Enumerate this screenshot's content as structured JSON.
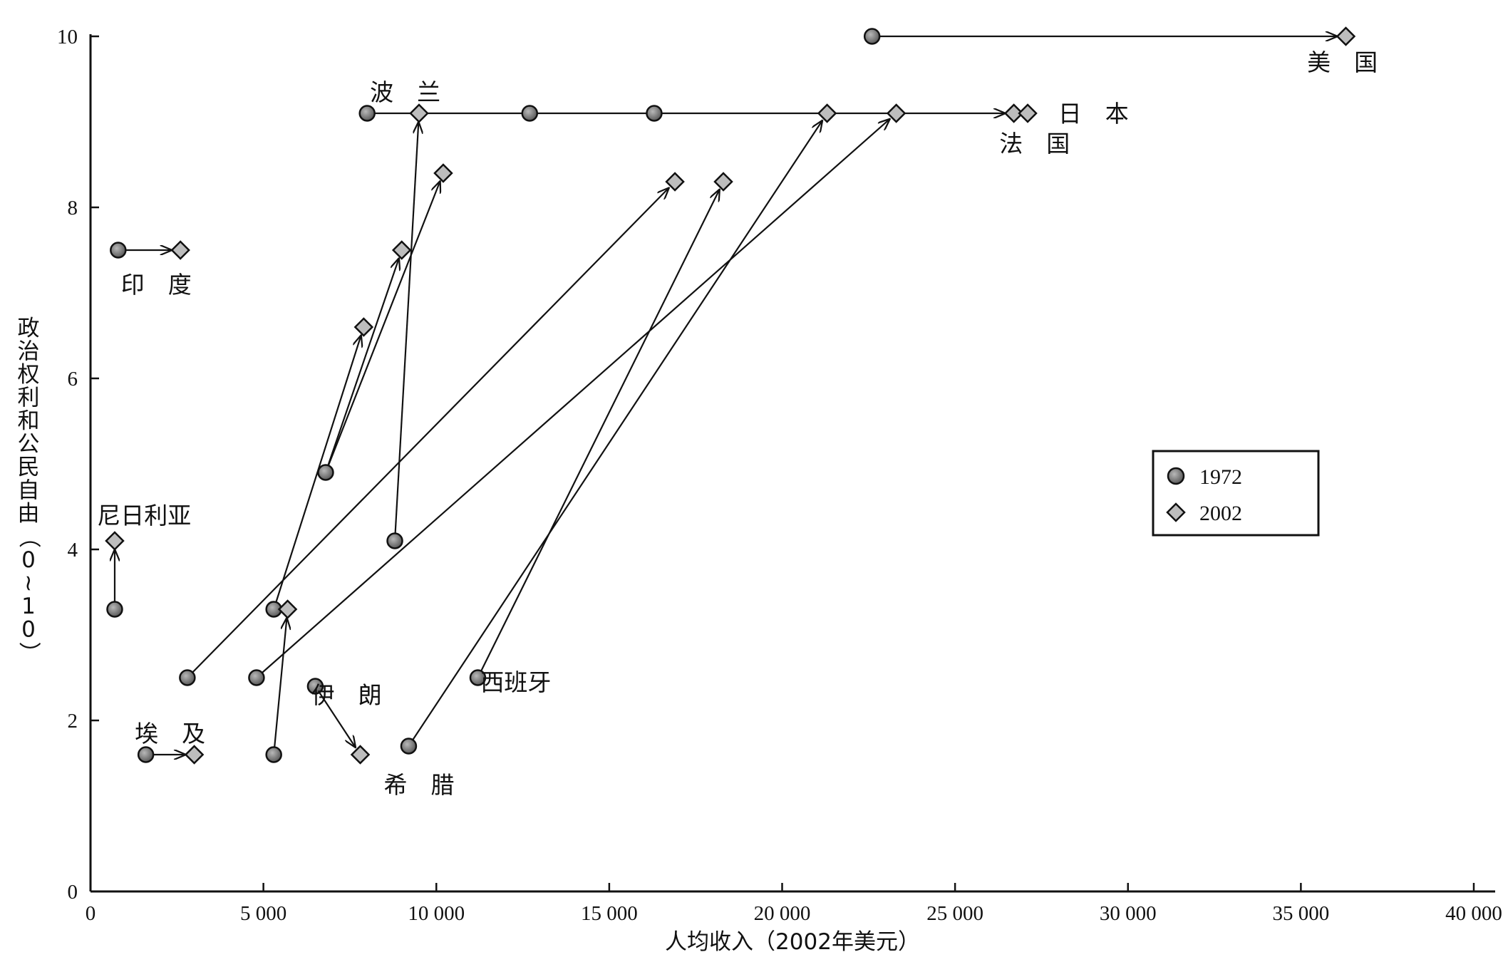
{
  "chart_data": {
    "type": "scatter",
    "xlabel": "人均收入（2002年美元）",
    "ylabel": "政治权利和公民自由（0~10）",
    "xlim": [
      0,
      40000
    ],
    "ylim": [
      0,
      10
    ],
    "x_ticks": [
      0,
      5000,
      10000,
      15000,
      20000,
      25000,
      30000,
      35000,
      40000
    ],
    "x_tick_labels": [
      "0",
      "5 000",
      "10 000",
      "15 000",
      "20 000",
      "25 000",
      "30 000",
      "35 000",
      "40 000"
    ],
    "y_ticks": [
      0,
      2,
      4,
      6,
      8,
      10
    ],
    "y_tick_labels": [
      "0",
      "2",
      "4",
      "6",
      "8",
      "10"
    ],
    "legend": {
      "position": "right",
      "entries": [
        {
          "marker": "circle",
          "label": "1972"
        },
        {
          "marker": "diamond",
          "label": "2002"
        }
      ]
    },
    "connections": [
      {
        "from": [
          800,
          7.5
        ],
        "to": [
          2600,
          7.5
        ]
      },
      {
        "from": [
          700,
          3.3
        ],
        "to": [
          700,
          4.1
        ]
      },
      {
        "from": [
          1600,
          1.6
        ],
        "to": [
          3000,
          1.6
        ]
      },
      {
        "from": [
          6500,
          2.4
        ],
        "to": [
          7800,
          1.6
        ]
      },
      {
        "from": [
          2800,
          2.5
        ],
        "to": [
          16900,
          8.3
        ]
      },
      {
        "from": [
          4800,
          2.5
        ],
        "to": [
          23300,
          9.1
        ]
      },
      {
        "from": [
          5300,
          1.6
        ],
        "to": [
          5700,
          3.3
        ]
      },
      {
        "from": [
          5300,
          3.3
        ],
        "to": [
          7900,
          6.6
        ]
      },
      {
        "from": [
          6800,
          4.9
        ],
        "to": [
          9000,
          7.5
        ]
      },
      {
        "from": [
          6800,
          4.9
        ],
        "to": [
          10200,
          8.4
        ]
      },
      {
        "from": [
          8800,
          4.1
        ],
        "to": [
          9500,
          9.1
        ]
      },
      {
        "from": [
          9200,
          1.7
        ],
        "to": [
          21300,
          9.1
        ]
      },
      {
        "from": [
          11200,
          2.5
        ],
        "to": [
          18300,
          8.3
        ]
      },
      {
        "from": [
          8000,
          9.1
        ],
        "to": [
          26700,
          9.1
        ]
      },
      {
        "from": [
          22600,
          10.0
        ],
        "to": [
          36300,
          10.0
        ]
      }
    ],
    "points_1972": [
      [
        800,
        7.5
      ],
      [
        700,
        3.3
      ],
      [
        1600,
        1.6
      ],
      [
        6500,
        2.4
      ],
      [
        2800,
        2.5
      ],
      [
        4800,
        2.5
      ],
      [
        5300,
        1.6
      ],
      [
        5300,
        3.3
      ],
      [
        6800,
        4.9
      ],
      [
        8800,
        4.1
      ],
      [
        9200,
        1.7
      ],
      [
        11200,
        2.5
      ],
      [
        8000,
        9.1
      ],
      [
        12700,
        9.1
      ],
      [
        16300,
        9.1
      ],
      [
        22600,
        10.0
      ]
    ],
    "points_2002": [
      [
        2600,
        7.5
      ],
      [
        700,
        4.1
      ],
      [
        3000,
        1.6
      ],
      [
        7800,
        1.6
      ],
      [
        5700,
        3.3
      ],
      [
        7900,
        6.6
      ],
      [
        9000,
        7.5
      ],
      [
        10200,
        8.4
      ],
      [
        9500,
        9.1
      ],
      [
        16900,
        8.3
      ],
      [
        18300,
        8.3
      ],
      [
        21300,
        9.1
      ],
      [
        23300,
        9.1
      ],
      [
        26700,
        9.1
      ],
      [
        27100,
        9.1
      ],
      [
        36300,
        10.0
      ]
    ],
    "annotations": [
      {
        "text": "美　国",
        "x": 36200,
        "y": 9.7
      },
      {
        "text": "波　兰",
        "x": 9100,
        "y": 9.35
      },
      {
        "text": "日　本",
        "x": 29000,
        "y": 9.1
      },
      {
        "text": "法　国",
        "x": 27300,
        "y": 8.75
      },
      {
        "text": "印　度",
        "x": 1900,
        "y": 7.1
      },
      {
        "text": "尼日利亚",
        "x": 1550,
        "y": 4.4
      },
      {
        "text": "伊　朗",
        "x": 7400,
        "y": 2.3
      },
      {
        "text": "西班牙",
        "x": 12300,
        "y": 2.45
      },
      {
        "text": "埃　及",
        "x": 2300,
        "y": 1.85
      },
      {
        "text": "希　腊",
        "x": 9500,
        "y": 1.25
      }
    ]
  }
}
